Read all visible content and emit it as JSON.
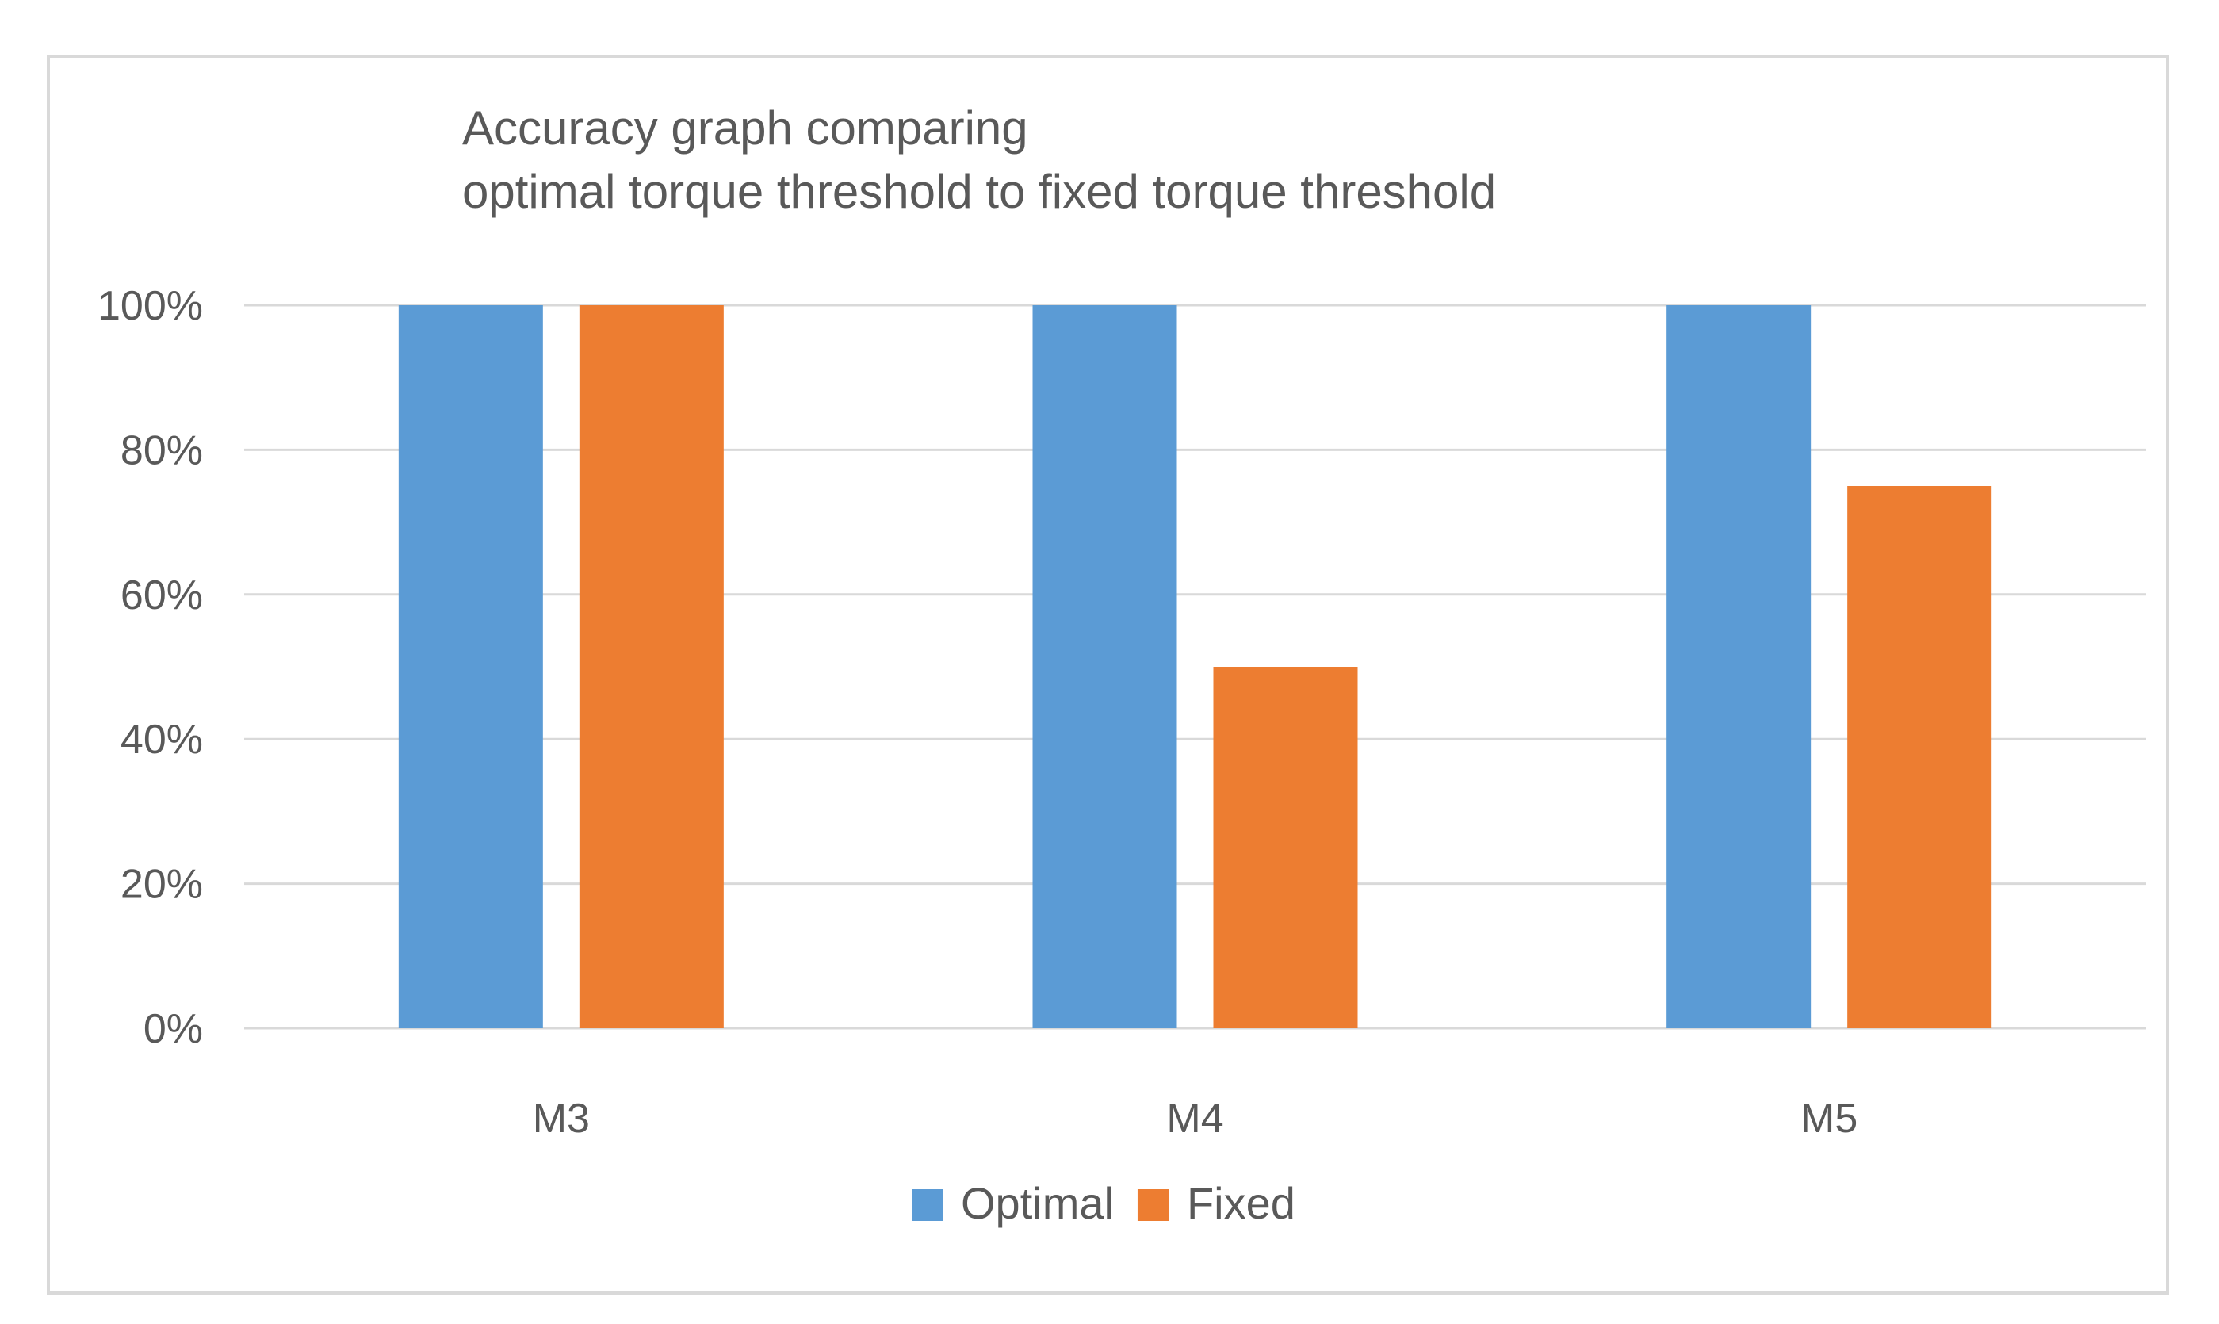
{
  "chart_data": {
    "type": "bar",
    "title_lines": [
      "Accuracy graph comparing",
      "optimal torque threshold to fixed torque threshold"
    ],
    "categories": [
      "M3",
      "M4",
      "M5"
    ],
    "series": [
      {
        "name": "Optimal",
        "color": "#5b9bd5",
        "values": [
          100,
          100,
          100
        ]
      },
      {
        "name": "Fixed",
        "color": "#ed7d31",
        "values": [
          100,
          50,
          75
        ]
      }
    ],
    "y_ticks": [
      "0%",
      "20%",
      "40%",
      "60%",
      "80%",
      "100%"
    ],
    "ylim": [
      0,
      100
    ],
    "grid": true,
    "legend_position": "bottom"
  }
}
